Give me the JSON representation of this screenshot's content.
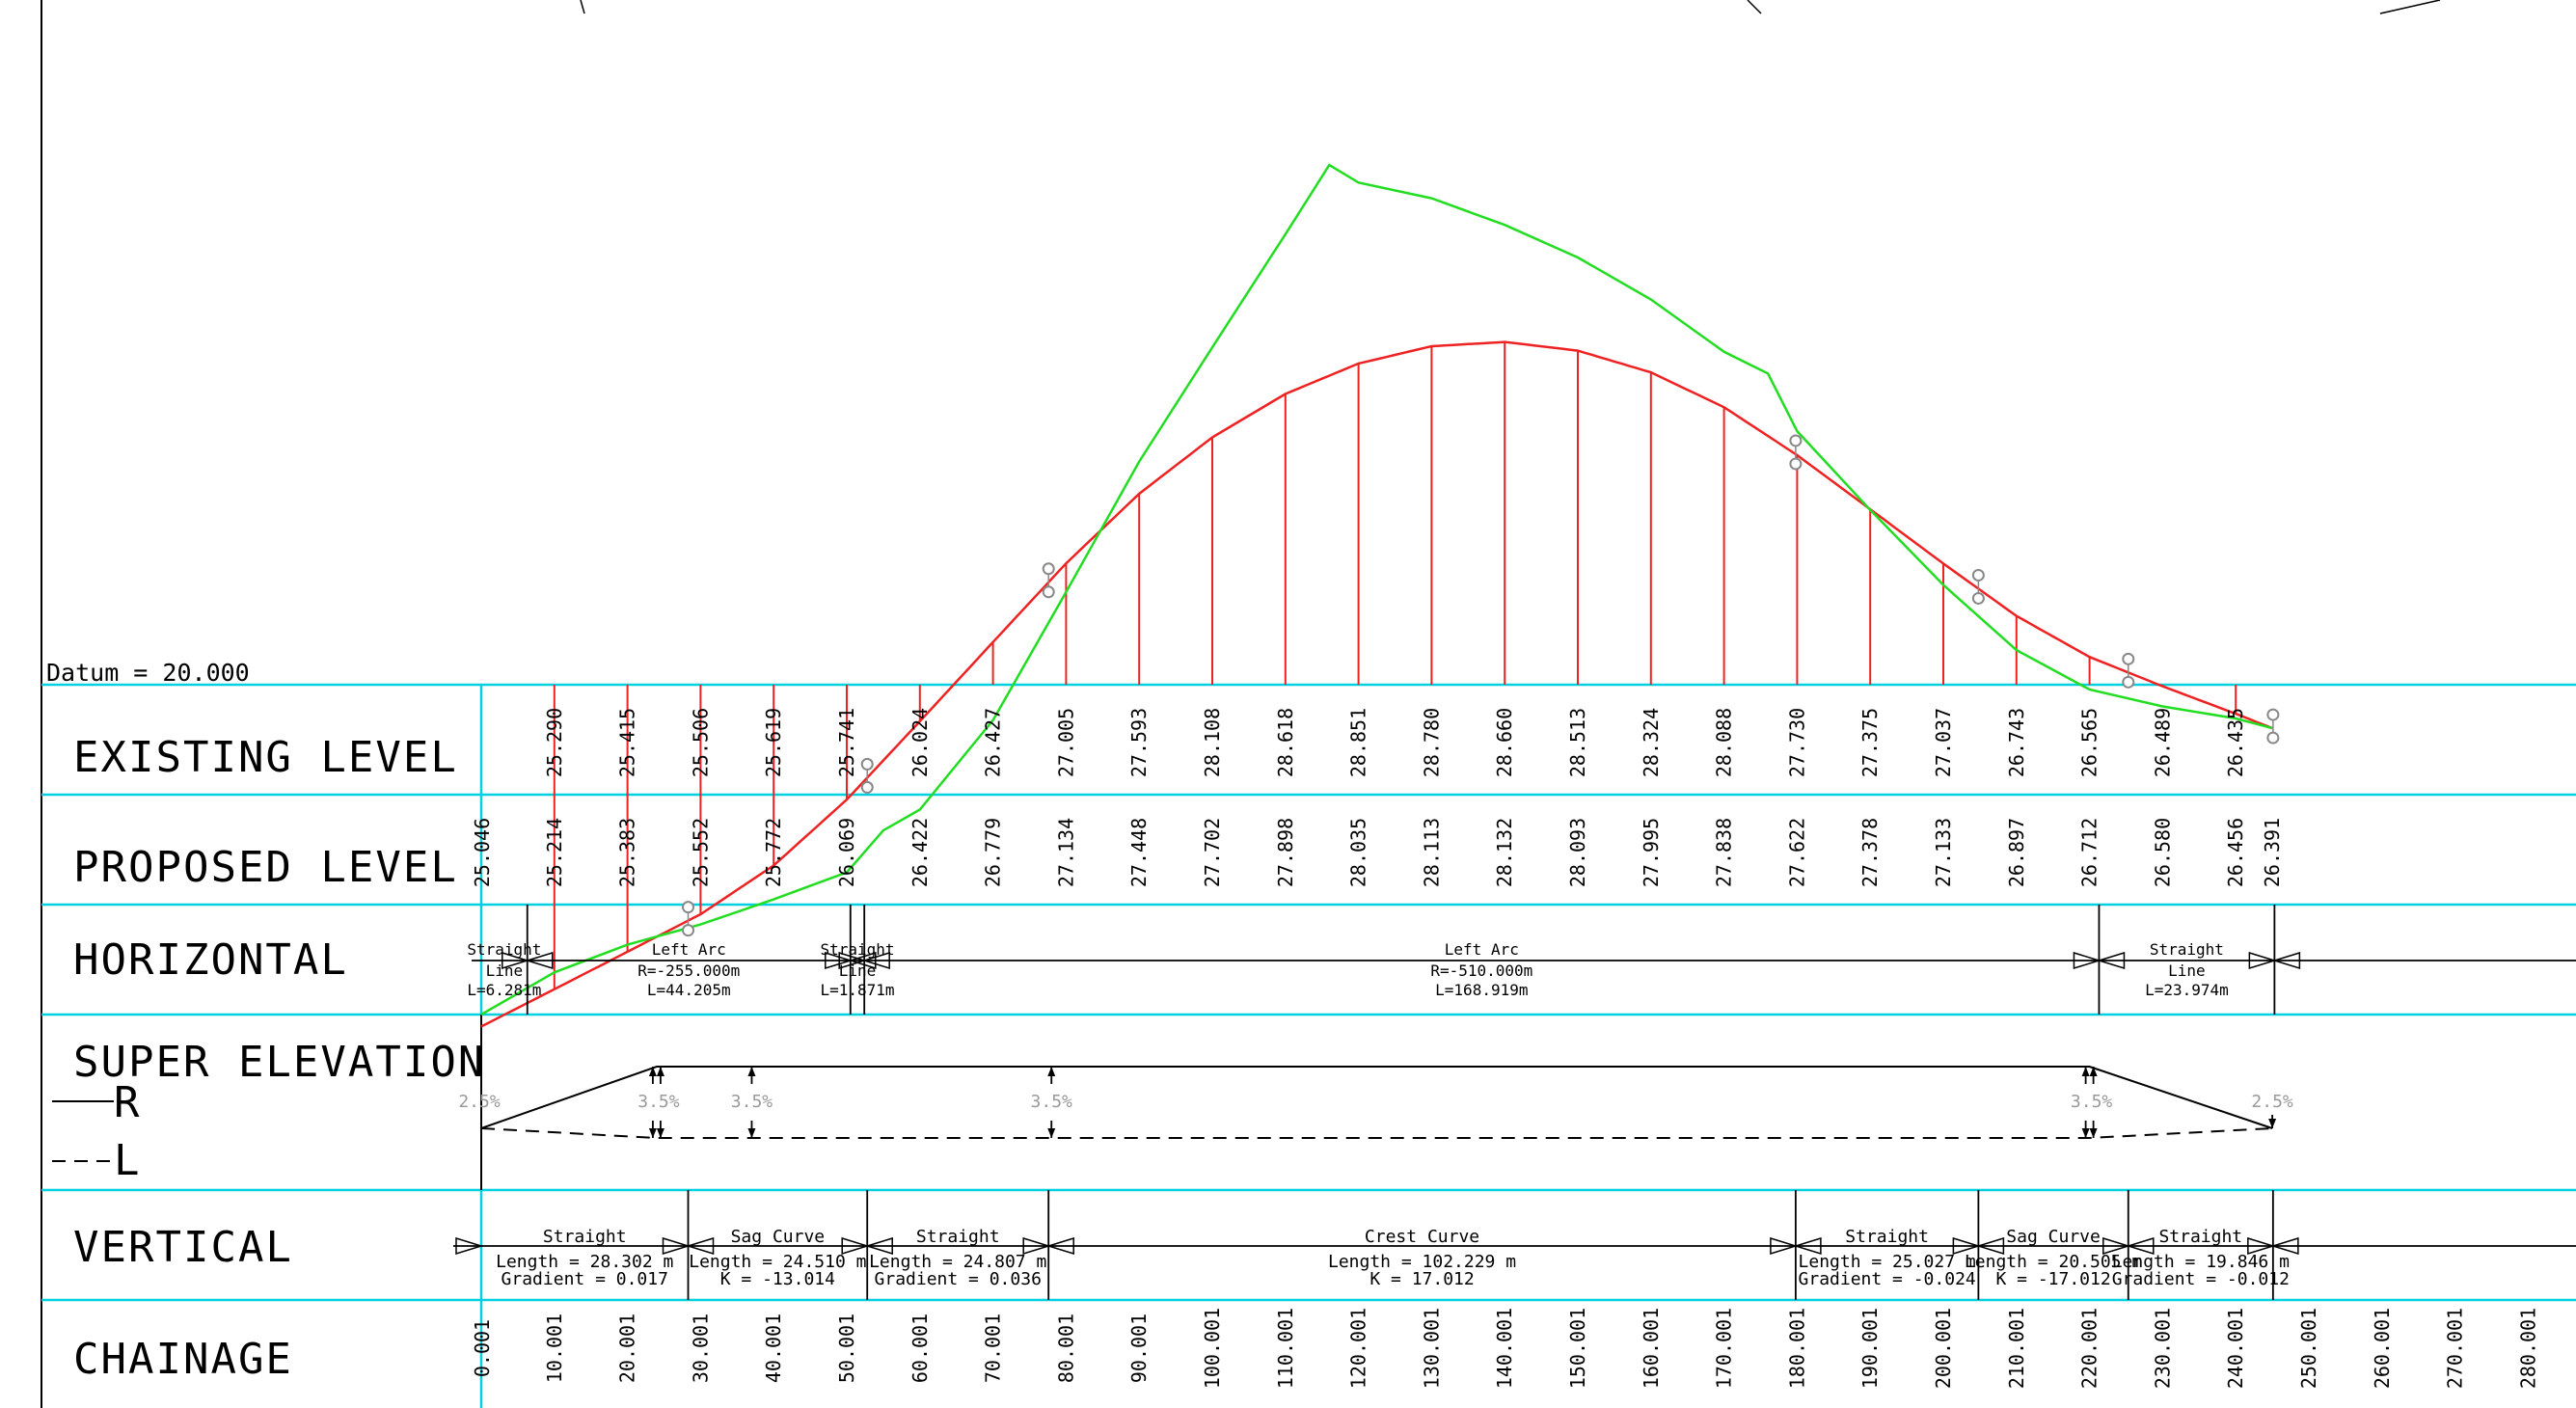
{
  "datum_label": "Datum  = 20.000",
  "rows": {
    "existing": "EXISTING LEVEL",
    "proposed": "PROPOSED  LEVEL",
    "horizontal": "HORIZONTAL",
    "super": "SUPER ELEVATION",
    "legend_r": "R",
    "legend_l": "L",
    "vertical": "VERTICAL",
    "chainage": "CHAINAGE"
  },
  "chart_data": {
    "type": "line",
    "datum": 20.0,
    "chainage_ticks": [
      "0.001",
      "10.001",
      "20.001",
      "30.001",
      "40.001",
      "50.001",
      "60.001",
      "70.001",
      "80.001",
      "90.001",
      "100.001",
      "110.001",
      "120.001",
      "130.001",
      "140.001",
      "150.001",
      "160.001",
      "170.001",
      "180.001",
      "190.001",
      "200.001",
      "210.001",
      "220.001",
      "230.001",
      "240.001",
      "250.001",
      "260.001",
      "270.001",
      "280.001"
    ],
    "existing_levels": [
      {
        "ch": 10,
        "v": "25.290"
      },
      {
        "ch": 20,
        "v": "25.415"
      },
      {
        "ch": 30,
        "v": "25.506"
      },
      {
        "ch": 40,
        "v": "25.619"
      },
      {
        "ch": 50,
        "v": "25.741"
      },
      {
        "ch": 60,
        "v": "26.024"
      },
      {
        "ch": 70,
        "v": "26.427"
      },
      {
        "ch": 80,
        "v": "27.005"
      },
      {
        "ch": 90,
        "v": "27.593"
      },
      {
        "ch": 100,
        "v": "28.108"
      },
      {
        "ch": 110,
        "v": "28.618"
      },
      {
        "ch": 120,
        "v": "28.851"
      },
      {
        "ch": 130,
        "v": "28.780"
      },
      {
        "ch": 140,
        "v": "28.660"
      },
      {
        "ch": 150,
        "v": "28.513"
      },
      {
        "ch": 160,
        "v": "28.324"
      },
      {
        "ch": 170,
        "v": "28.088"
      },
      {
        "ch": 180,
        "v": "27.730"
      },
      {
        "ch": 190,
        "v": "27.375"
      },
      {
        "ch": 200,
        "v": "27.037"
      },
      {
        "ch": 210,
        "v": "26.743"
      },
      {
        "ch": 220,
        "v": "26.565"
      },
      {
        "ch": 230,
        "v": "26.489"
      },
      {
        "ch": 240,
        "v": "26.435"
      }
    ],
    "proposed_levels": [
      {
        "ch": 0,
        "v": "25.046"
      },
      {
        "ch": 10,
        "v": "25.214"
      },
      {
        "ch": 20,
        "v": "25.383"
      },
      {
        "ch": 30,
        "v": "25.552"
      },
      {
        "ch": 40,
        "v": "25.772"
      },
      {
        "ch": 50,
        "v": "26.069"
      },
      {
        "ch": 60,
        "v": "26.422"
      },
      {
        "ch": 70,
        "v": "26.779"
      },
      {
        "ch": 80,
        "v": "27.134"
      },
      {
        "ch": 90,
        "v": "27.448"
      },
      {
        "ch": 100,
        "v": "27.702"
      },
      {
        "ch": 110,
        "v": "27.898"
      },
      {
        "ch": 120,
        "v": "28.035"
      },
      {
        "ch": 130,
        "v": "28.113"
      },
      {
        "ch": 140,
        "v": "28.132"
      },
      {
        "ch": 150,
        "v": "28.093"
      },
      {
        "ch": 160,
        "v": "27.995"
      },
      {
        "ch": 170,
        "v": "27.838"
      },
      {
        "ch": 180,
        "v": "27.622"
      },
      {
        "ch": 190,
        "v": "27.378"
      },
      {
        "ch": 200,
        "v": "27.133"
      },
      {
        "ch": 210,
        "v": "26.897"
      },
      {
        "ch": 220,
        "v": "26.712"
      },
      {
        "ch": 230,
        "v": "26.580"
      },
      {
        "ch": 240,
        "v": "26.456"
      },
      {
        "ch": 245,
        "v": "26.391"
      }
    ],
    "horizontal_elements": [
      {
        "start": 0,
        "end": 6.3,
        "lines": [
          "Straight",
          "Line",
          "L=6.281m"
        ]
      },
      {
        "start": 6.3,
        "end": 50.5,
        "lines": [
          "Left Arc",
          "R=-255.000m",
          "L=44.205m"
        ]
      },
      {
        "start": 50.5,
        "end": 52.4,
        "lines": [
          "Straight",
          "Line",
          "L=1.871m"
        ]
      },
      {
        "start": 52.4,
        "end": 221.3,
        "lines": [
          "Left Arc",
          "R=-510.000m",
          "L=168.919m"
        ]
      },
      {
        "start": 221.3,
        "end": 245.3,
        "lines": [
          "Straight",
          "Line",
          "L=23.974m"
        ]
      }
    ],
    "vertical_elements": [
      {
        "start": 0,
        "end": 28.3,
        "lines": [
          "Straight",
          "Length = 28.302 m",
          "Gradient = 0.017"
        ]
      },
      {
        "start": 28.3,
        "end": 52.8,
        "lines": [
          "Sag Curve",
          "Length = 24.510 m",
          "K = -13.014"
        ]
      },
      {
        "start": 52.8,
        "end": 77.6,
        "lines": [
          "Straight",
          "Length = 24.807 m",
          "Gradient = 0.036"
        ]
      },
      {
        "start": 77.6,
        "end": 179.8,
        "lines": [
          "Crest Curve",
          "Length = 102.229 m",
          "K = 17.012"
        ]
      },
      {
        "start": 179.8,
        "end": 204.8,
        "lines": [
          "Straight",
          "Length = 25.027 m",
          "Gradient = -0.024"
        ]
      },
      {
        "start": 204.8,
        "end": 225.3,
        "lines": [
          "Sag Curve",
          "Length = 20.505 m",
          "K = -17.012"
        ]
      },
      {
        "start": 225.3,
        "end": 245.1,
        "lines": [
          "Straight",
          "Length = 19.846 m",
          "Gradient = -0.012"
        ]
      }
    ],
    "super_elevation": {
      "breakpoints": [
        0,
        24,
        220,
        245
      ],
      "labels": [
        {
          "ch": 0,
          "t": "2.5%"
        },
        {
          "ch": 24,
          "t": "3.5%"
        },
        {
          "ch": 37,
          "t": "3.5%"
        },
        {
          "ch": 78,
          "t": "3.5%"
        },
        {
          "ch": 220,
          "t": "3.5%"
        },
        {
          "ch": 245,
          "t": "2.5%"
        }
      ]
    },
    "existing_profile": [
      [
        0,
        25.1
      ],
      [
        10,
        25.29
      ],
      [
        20,
        25.415
      ],
      [
        30,
        25.506
      ],
      [
        40,
        25.619
      ],
      [
        50,
        25.741
      ],
      [
        55,
        25.93
      ],
      [
        60,
        26.024
      ],
      [
        70,
        26.427
      ],
      [
        80,
        27.005
      ],
      [
        90,
        27.593
      ],
      [
        100,
        28.108
      ],
      [
        110,
        28.618
      ],
      [
        116,
        28.93
      ],
      [
        120,
        28.851
      ],
      [
        130,
        28.78
      ],
      [
        140,
        28.66
      ],
      [
        150,
        28.513
      ],
      [
        160,
        28.324
      ],
      [
        170,
        28.088
      ],
      [
        176,
        27.99
      ],
      [
        180,
        27.73
      ],
      [
        190,
        27.375
      ],
      [
        200,
        27.037
      ],
      [
        210,
        26.743
      ],
      [
        220,
        26.565
      ],
      [
        230,
        26.489
      ],
      [
        240,
        26.435
      ],
      [
        245,
        26.391
      ]
    ]
  }
}
